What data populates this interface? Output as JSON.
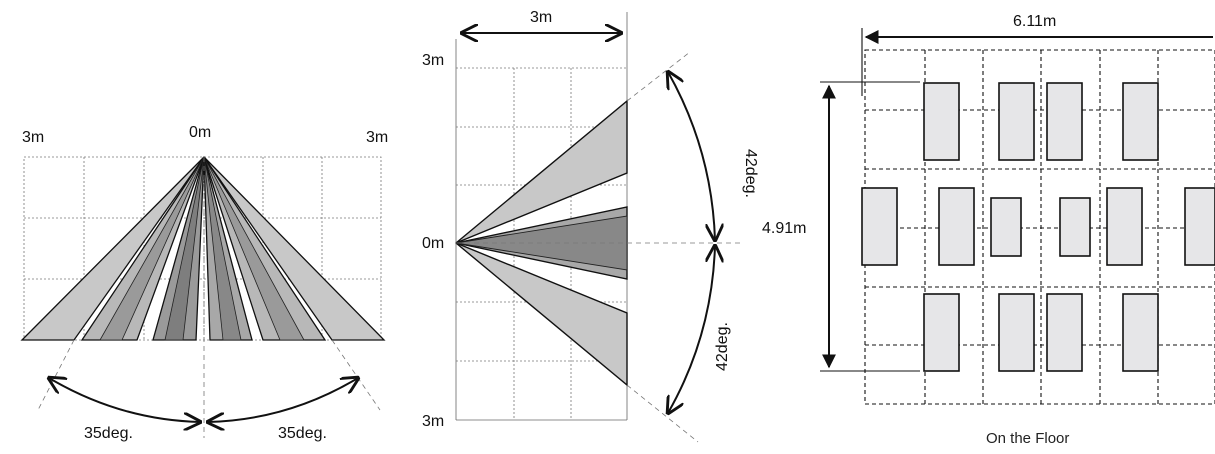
{
  "front_view": {
    "label_left": "3m",
    "label_center": "0m",
    "label_right": "3m",
    "angle_left": "35deg.",
    "angle_right": "35deg."
  },
  "side_view": {
    "label_width": "3m",
    "label_top": "3m",
    "label_middle": "0m",
    "label_bottom": "3m",
    "angle_upper": "42deg.",
    "angle_lower": "42deg."
  },
  "floor_view": {
    "label_width": "6.11m",
    "label_height": "4.91m",
    "caption": "On the Floor"
  },
  "colors": {
    "zone_light": "#c8c8c8",
    "zone_mid": "#9a9a9a",
    "zone_dark": "#808080",
    "floor_zone": "#e6e6e8"
  }
}
